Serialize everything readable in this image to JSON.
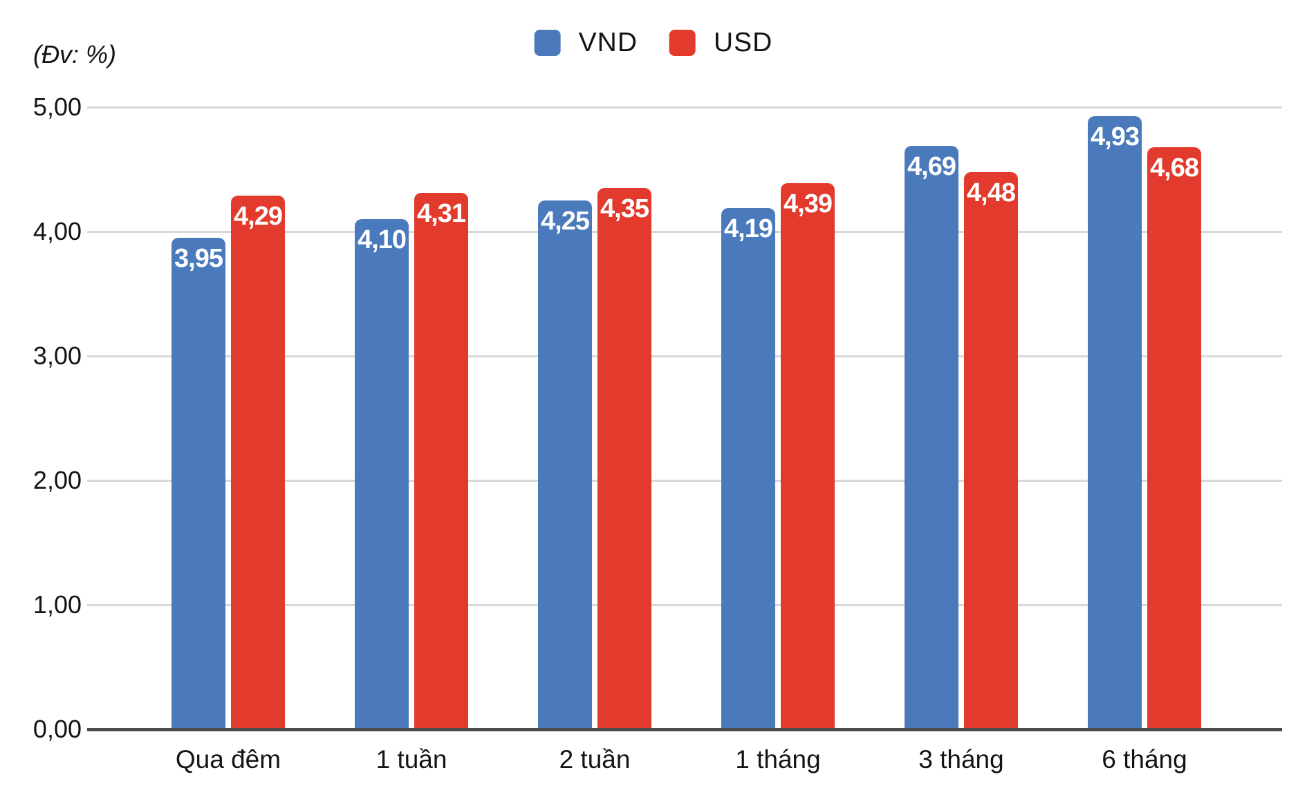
{
  "unit_label": "(Đv: %)",
  "legend": {
    "items": [
      {
        "label": "VND",
        "color": "#4a7abc"
      },
      {
        "label": "USD",
        "color": "#e23a2c"
      }
    ]
  },
  "chart_data": {
    "type": "bar",
    "title": "",
    "unit_annotation": "(Đv: %)",
    "decimal_separator": ",",
    "categories": [
      "Qua đêm",
      "1 tuần",
      "2 tuần",
      "1 tháng",
      "3 tháng",
      "6 tháng"
    ],
    "series": [
      {
        "name": "VND",
        "color": "#4a7abc",
        "values": [
          3.95,
          4.1,
          4.25,
          4.19,
          4.69,
          4.93
        ],
        "labels": [
          "3,95",
          "4,10",
          "4,25",
          "4,19",
          "4,69",
          "4,93"
        ]
      },
      {
        "name": "USD",
        "color": "#e23a2c",
        "values": [
          4.29,
          4.31,
          4.35,
          4.39,
          4.48,
          4.68
        ],
        "labels": [
          "4,29",
          "4,31",
          "4,35",
          "4,39",
          "4,48",
          "4,68"
        ]
      }
    ],
    "y_axis": {
      "min": 0,
      "max": 5,
      "step": 1,
      "tick_labels": [
        "0,00",
        "1,00",
        "2,00",
        "3,00",
        "4,00",
        "5,00"
      ]
    },
    "x_axis": {
      "tick_labels": [
        "Qua đêm",
        "1 tuần",
        "2 tuần",
        "1 tháng",
        "3 tháng",
        "6 tháng"
      ]
    },
    "grid": true,
    "legend_position": "top-center",
    "value_labels": "inside-top",
    "bar_colors": {
      "VND": "#4a7abc",
      "USD": "#e23a2c"
    }
  }
}
